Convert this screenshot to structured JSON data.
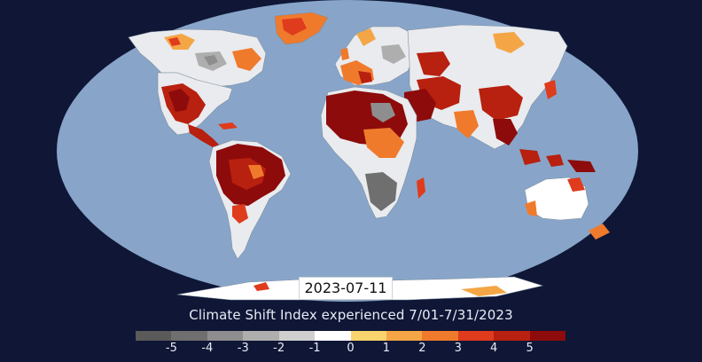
{
  "map": {
    "projection": "robinson-like",
    "ocean_color": "#88a5c9",
    "background_color": "#0f1636",
    "border_color": "#6f7f8f"
  },
  "date_label": "2023-07-11",
  "legend": {
    "title": "Climate Shift Index experienced 7/01-7/31/2023",
    "colors": [
      "#5a5a5a",
      "#6f6f6f",
      "#8e8e8e",
      "#aeaeae",
      "#cfcfcf",
      "#ffffff",
      "#f9d36d",
      "#f4a646",
      "#f07a2c",
      "#df3b1d",
      "#b8200f",
      "#8d0b0b"
    ],
    "tick_labels": [
      "-5",
      "-4",
      "-3",
      "-2",
      "-1",
      "0",
      "1",
      "2",
      "3",
      "4",
      "5"
    ]
  }
}
